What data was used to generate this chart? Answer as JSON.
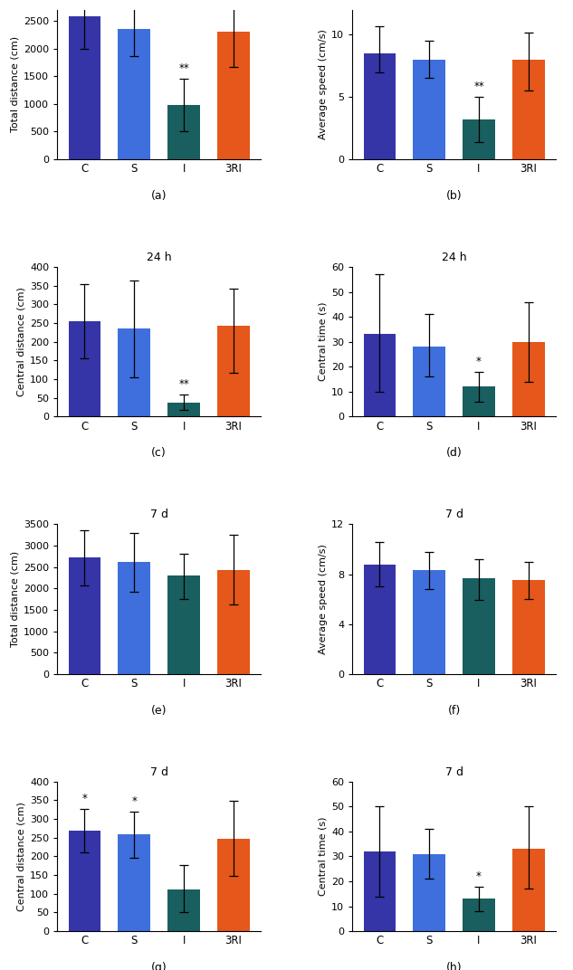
{
  "colors": {
    "C": "#3535a8",
    "S": "#3f6fdd",
    "I": "#1a5f60",
    "3RI": "#e5571a"
  },
  "categories": [
    "C",
    "S",
    "I",
    "3RI"
  ],
  "panels": [
    {
      "label": "(a)",
      "ylabel": "Total distance (cm)",
      "ylim": [
        0,
        2700
      ],
      "yticks": [
        0,
        500,
        1000,
        1500,
        2000,
        2500
      ],
      "values": [
        2580,
        2350,
        980,
        2310
      ],
      "errors_up": [
        620,
        490,
        480,
        710
      ],
      "errors_dn": [
        580,
        490,
        480,
        650
      ],
      "sig": {
        "I": "**"
      },
      "subtitle": ""
    },
    {
      "label": "(b)",
      "ylabel": "Average speed (cm/s)",
      "ylim": [
        0,
        12
      ],
      "yticks": [
        0,
        5,
        10
      ],
      "values": [
        8.5,
        8.0,
        3.2,
        8.0
      ],
      "errors_up": [
        2.2,
        1.5,
        1.8,
        2.2
      ],
      "errors_dn": [
        1.5,
        1.5,
        1.8,
        2.5
      ],
      "sig": {
        "I": "**"
      },
      "subtitle": ""
    },
    {
      "label": "(c)",
      "ylabel": "Central distance (cm)",
      "ylim": [
        0,
        400
      ],
      "yticks": [
        0,
        50,
        100,
        150,
        200,
        250,
        300,
        350,
        400
      ],
      "values": [
        255,
        235,
        38,
        242
      ],
      "errors_up": [
        100,
        130,
        20,
        100
      ],
      "errors_dn": [
        100,
        130,
        20,
        125
      ],
      "sig": {
        "I": "**"
      },
      "subtitle": "24 h"
    },
    {
      "label": "(d)",
      "ylabel": "Central time (s)",
      "ylim": [
        0,
        60
      ],
      "yticks": [
        0,
        10,
        20,
        30,
        40,
        50,
        60
      ],
      "values": [
        33,
        28,
        12,
        30
      ],
      "errors_up": [
        24,
        13,
        6,
        16
      ],
      "errors_dn": [
        23,
        12,
        6,
        16
      ],
      "sig": {
        "I": "*"
      },
      "subtitle": "24 h"
    },
    {
      "label": "(e)",
      "ylabel": "Total distance (cm)",
      "ylim": [
        0,
        3500
      ],
      "yticks": [
        0,
        500,
        1000,
        1500,
        2000,
        2500,
        3000,
        3500
      ],
      "values": [
        2720,
        2610,
        2310,
        2430
      ],
      "errors_up": [
        650,
        680,
        500,
        820
      ],
      "errors_dn": [
        650,
        680,
        550,
        800
      ],
      "sig": {},
      "subtitle": "7 d"
    },
    {
      "label": "(f)",
      "ylabel": "Average speed (cm/s)",
      "ylim": [
        0,
        12
      ],
      "yticks": [
        0,
        4,
        8,
        12
      ],
      "values": [
        8.8,
        8.3,
        7.7,
        7.5
      ],
      "errors_up": [
        1.8,
        1.5,
        1.5,
        1.5
      ],
      "errors_dn": [
        1.8,
        1.5,
        1.8,
        1.5
      ],
      "sig": {},
      "subtitle": "7 d"
    },
    {
      "label": "(g)",
      "ylabel": "Central distance (cm)",
      "ylim": [
        0,
        400
      ],
      "yticks": [
        0,
        50,
        100,
        150,
        200,
        250,
        300,
        350,
        400
      ],
      "values": [
        268,
        258,
        112,
        248
      ],
      "errors_up": [
        58,
        62,
        65,
        100
      ],
      "errors_dn": [
        58,
        62,
        62,
        100
      ],
      "sig": {
        "C": "*",
        "S": "*"
      },
      "subtitle": "7 d"
    },
    {
      "label": "(h)",
      "ylabel": "Central time (s)",
      "ylim": [
        0,
        60
      ],
      "yticks": [
        0,
        10,
        20,
        30,
        40,
        50,
        60
      ],
      "values": [
        32,
        31,
        13,
        33
      ],
      "errors_up": [
        18,
        10,
        5,
        17
      ],
      "errors_dn": [
        18,
        10,
        5,
        16
      ],
      "sig": {
        "I": "*"
      },
      "subtitle": "7 d"
    }
  ]
}
